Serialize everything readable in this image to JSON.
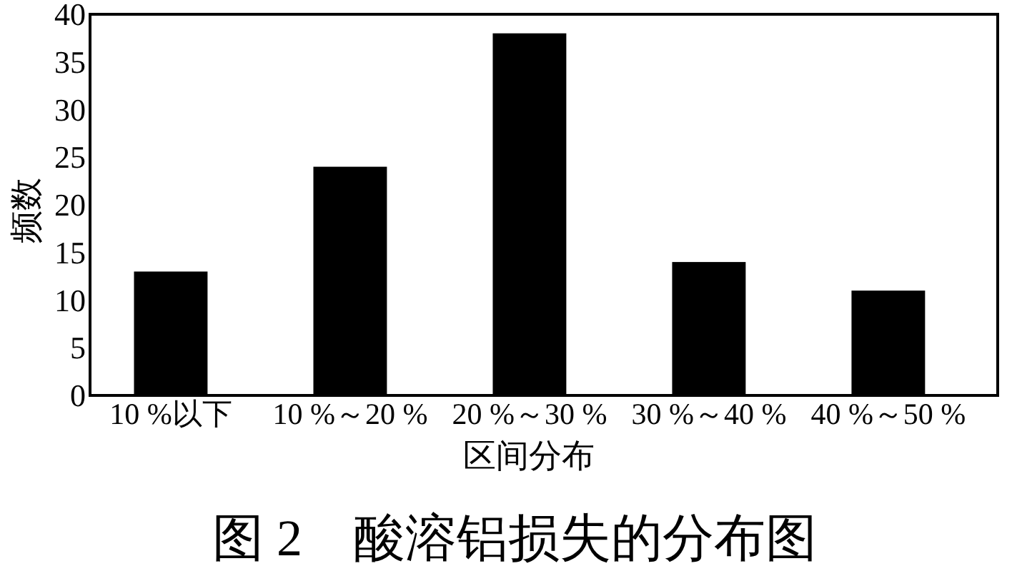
{
  "chart_data": {
    "type": "bar",
    "title": "图 2　酸溶铝损失的分布图",
    "xlabel": "区间分布",
    "ylabel": "频数",
    "categories": [
      "10 %以下",
      "10 %～20 %",
      "20 %～30 %",
      "30 %～40 %",
      "40 %～50 %"
    ],
    "values": [
      13,
      24,
      38,
      14,
      11
    ],
    "color": "#000000",
    "ylim": [
      0,
      40
    ],
    "yticks": [
      0,
      5,
      10,
      15,
      20,
      25,
      30,
      35,
      40
    ]
  }
}
